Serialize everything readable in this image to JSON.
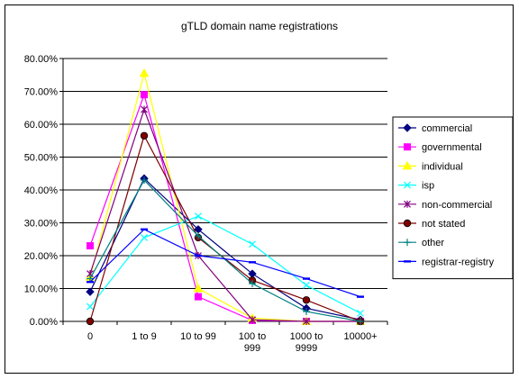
{
  "chart_data": {
    "type": "line",
    "title": "gTLD domain name registrations",
    "xlabel": "",
    "ylabel": "",
    "categories": [
      "0",
      "1 to 9",
      "10 to 99",
      "100 to 999",
      "1000 to 9999",
      "10000+"
    ],
    "category_lines": [
      [
        "0"
      ],
      [
        "1 to 9"
      ],
      [
        "10 to 99"
      ],
      [
        "100 to",
        "999"
      ],
      [
        "1000 to",
        "9999"
      ],
      [
        "10000+"
      ]
    ],
    "ylim": [
      0,
      80
    ],
    "yticks": [
      "0.00%",
      "10.00%",
      "20.00%",
      "30.00%",
      "40.00%",
      "50.00%",
      "60.00%",
      "70.00%",
      "80.00%"
    ],
    "grid": true,
    "legend_position": "right",
    "series": [
      {
        "name": "commercial",
        "color": "#000080",
        "marker": "diamond",
        "values": [
          9.0,
          43.5,
          28.0,
          14.5,
          4.0,
          0.5
        ]
      },
      {
        "name": "governmental",
        "color": "#ff00ff",
        "marker": "square",
        "values": [
          23.0,
          69.0,
          7.5,
          0.3,
          0.0,
          0.0
        ]
      },
      {
        "name": "individual",
        "color": "#ffff00",
        "marker": "triangle",
        "values": [
          13.5,
          75.5,
          10.0,
          1.0,
          0.0,
          0.0
        ]
      },
      {
        "name": "isp",
        "color": "#00ffff",
        "marker": "x",
        "values": [
          4.5,
          25.5,
          32.0,
          23.5,
          11.0,
          2.5
        ]
      },
      {
        "name": "non-commercial",
        "color": "#800080",
        "marker": "star",
        "values": [
          14.5,
          64.5,
          20.0,
          0.5,
          0.0,
          0.0
        ]
      },
      {
        "name": "not stated",
        "color": "#800000",
        "marker": "circle",
        "values": [
          0.0,
          56.5,
          25.5,
          12.5,
          6.5,
          0.0
        ]
      },
      {
        "name": "other",
        "color": "#008080",
        "marker": "plus",
        "values": [
          13.0,
          43.0,
          26.0,
          11.5,
          3.0,
          0.0
        ]
      },
      {
        "name": "registrar-registry",
        "color": "#0000ff",
        "marker": "dash",
        "values": [
          12.0,
          28.0,
          20.0,
          18.0,
          13.0,
          7.5
        ]
      }
    ]
  }
}
